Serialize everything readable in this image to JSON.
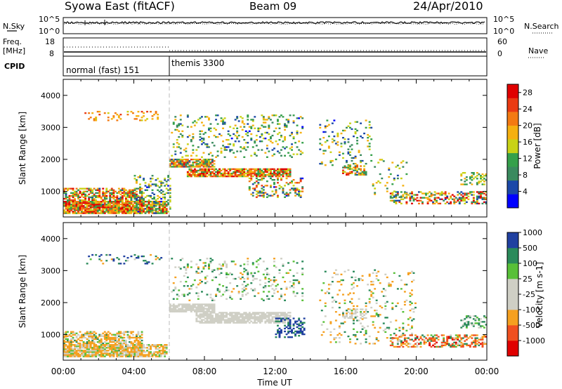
{
  "header": {
    "title": "Syowa East (fitACF)",
    "beam": "Beam 09",
    "date": "24/Apr/2010"
  },
  "noise_panel": {
    "left_label": "N.Sky",
    "right_label": "N.Search",
    "tick_top": "10^5",
    "tick_bottom": "10^0"
  },
  "freq_panel": {
    "left_label_1": "Freq.",
    "left_label_2": "[MHz]",
    "left_tick_top": "18",
    "left_tick_bottom": "8",
    "right_label": "Nave",
    "right_tick_top": "60",
    "right_tick_bottom": "0"
  },
  "cpid_panel": {
    "label": "CPID",
    "mode_1": "normal (fast) 151",
    "mode_2": "themis 3300"
  },
  "x_axis": {
    "label": "Time UT",
    "ticks": [
      "00:00",
      "04:00",
      "08:00",
      "12:00",
      "16:00",
      "20:00",
      "00:00"
    ]
  },
  "colors": {
    "power": [
      "#0000ff",
      "#1b48a8",
      "#3a8a5e",
      "#35a04a",
      "#c8d216",
      "#f5b010",
      "#f37a12",
      "#ea3a12",
      "#e00000"
    ],
    "velocity": [
      "#e00000",
      "#f05020",
      "#f5a020",
      "#cfcfc5",
      "#cfcfc5",
      "#58c038",
      "#2a8a5a",
      "#2040a0"
    ]
  },
  "chart_data": [
    {
      "type": "heatmap",
      "name": "power",
      "ylabel": "Slant Range [km]",
      "yticks": [
        "1000",
        "2000",
        "3000",
        "4000"
      ],
      "ylim": [
        200,
        4500
      ],
      "xlim_hours": [
        0,
        24
      ],
      "colorbar": {
        "label": "Power [dB]",
        "ticks": [
          "4",
          "8",
          "12",
          "16",
          "20",
          "24",
          "28"
        ],
        "range": [
          0,
          30
        ]
      },
      "regions": [
        {
          "t": [
            0.0,
            4.5
          ],
          "r": [
            300,
            1100
          ],
          "val": [
            6,
            30
          ],
          "density": 0.6
        },
        {
          "t": [
            0.0,
            5.8
          ],
          "r": [
            300,
            700
          ],
          "val": [
            10,
            30
          ],
          "density": 0.8
        },
        {
          "t": [
            4.0,
            6.0
          ],
          "r": [
            300,
            1500
          ],
          "val": [
            3,
            18
          ],
          "density": 0.25
        },
        {
          "t": [
            1.2,
            5.5
          ],
          "r": [
            3200,
            3500
          ],
          "val": [
            16,
            24
          ],
          "density": 0.15
        },
        {
          "t": [
            6.0,
            8.5
          ],
          "r": [
            1750,
            2000
          ],
          "val": [
            4,
            28
          ],
          "density": 0.85
        },
        {
          "t": [
            7.0,
            12.8
          ],
          "r": [
            1450,
            1720
          ],
          "val": [
            10,
            30
          ],
          "density": 0.8
        },
        {
          "t": [
            6.1,
            13.5
          ],
          "r": [
            2050,
            3400
          ],
          "val": [
            3,
            20
          ],
          "density": 0.14
        },
        {
          "t": [
            10.5,
            13.5
          ],
          "r": [
            800,
            1400
          ],
          "val": [
            3,
            26
          ],
          "density": 0.3
        },
        {
          "t": [
            14.5,
            17.5
          ],
          "r": [
            1800,
            3200
          ],
          "val": [
            3,
            20
          ],
          "density": 0.12
        },
        {
          "t": [
            15.8,
            17.2
          ],
          "r": [
            1500,
            1800
          ],
          "val": [
            6,
            28
          ],
          "density": 0.5
        },
        {
          "t": [
            17.5,
            19.5
          ],
          "r": [
            800,
            2000
          ],
          "val": [
            3,
            20
          ],
          "density": 0.12
        },
        {
          "t": [
            18.5,
            24.0
          ],
          "r": [
            600,
            1000
          ],
          "val": [
            4,
            30
          ],
          "density": 0.45
        },
        {
          "t": [
            22.5,
            24.0
          ],
          "r": [
            1200,
            1600
          ],
          "val": [
            8,
            20
          ],
          "density": 0.35
        }
      ]
    },
    {
      "type": "heatmap",
      "name": "velocity",
      "ylabel": "Slant Range [km]",
      "yticks": [
        "1000",
        "2000",
        "3000",
        "4000"
      ],
      "ylim": [
        200,
        4500
      ],
      "xlim_hours": [
        0,
        24
      ],
      "colorbar": {
        "label": "Velocity [m s-1]",
        "ticks": [
          "-1000",
          "-500",
          "-100",
          "-25",
          "25",
          "100",
          "500",
          "1000"
        ],
        "range": [
          -1200,
          1200
        ]
      },
      "regions": [
        {
          "t": [
            0.0,
            4.5
          ],
          "r": [
            300,
            1100
          ],
          "val": [
            -400,
            150
          ],
          "density": 0.6
        },
        {
          "t": [
            0.0,
            5.8
          ],
          "r": [
            300,
            700
          ],
          "val": [
            -300,
            80
          ],
          "density": 0.7
        },
        {
          "t": [
            1.2,
            5.5
          ],
          "r": [
            3200,
            3500
          ],
          "val": [
            -200,
            900
          ],
          "density": 0.15
        },
        {
          "t": [
            6.0,
            8.5
          ],
          "r": [
            1700,
            1950
          ],
          "val": [
            -20,
            20
          ],
          "density": 0.85
        },
        {
          "t": [
            7.5,
            12.8
          ],
          "r": [
            1350,
            1700
          ],
          "val": [
            -20,
            20
          ],
          "density": 0.8
        },
        {
          "t": [
            6.1,
            13.5
          ],
          "r": [
            2050,
            3400
          ],
          "val": [
            -150,
            200
          ],
          "density": 0.12
        },
        {
          "t": [
            12.0,
            13.6
          ],
          "r": [
            900,
            1500
          ],
          "val": [
            300,
            1100
          ],
          "density": 0.4
        },
        {
          "t": [
            15.8,
            17.2
          ],
          "r": [
            1500,
            1800
          ],
          "val": [
            -20,
            20
          ],
          "density": 0.5
        },
        {
          "t": [
            14.5,
            20.0
          ],
          "r": [
            700,
            3000
          ],
          "val": [
            -300,
            200
          ],
          "density": 0.1
        },
        {
          "t": [
            18.5,
            24.0
          ],
          "r": [
            600,
            1000
          ],
          "val": [
            -1100,
            300
          ],
          "density": 0.45
        },
        {
          "t": [
            22.5,
            24.0
          ],
          "r": [
            1200,
            1600
          ],
          "val": [
            -100,
            300
          ],
          "density": 0.35
        }
      ]
    }
  ]
}
